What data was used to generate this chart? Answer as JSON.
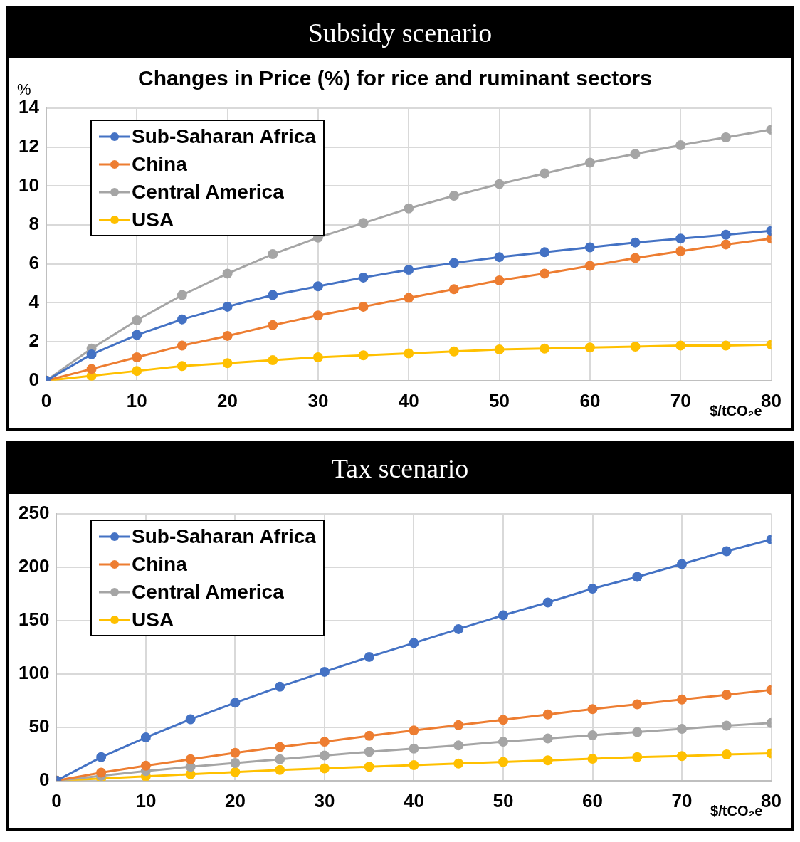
{
  "chart_data": [
    {
      "type": "line",
      "title": "Subsidy scenario",
      "subtitle": "Changes in Price (%) for rice and ruminant sectors",
      "ylabel": "%",
      "xlabel": "$/tCO₂e",
      "x": [
        0,
        5,
        10,
        15,
        20,
        25,
        30,
        35,
        40,
        45,
        50,
        55,
        60,
        65,
        70,
        75,
        80
      ],
      "xlim": [
        0,
        80
      ],
      "xticks": [
        0,
        10,
        20,
        30,
        40,
        50,
        60,
        70,
        80
      ],
      "ylim": [
        0,
        14
      ],
      "yticks": [
        0,
        2,
        4,
        6,
        8,
        10,
        12,
        14
      ],
      "grid": true,
      "legend": "top left",
      "marker": "circle",
      "line_style": "solid",
      "series": [
        {
          "name": "Sub-Saharan Africa",
          "color": "#4472c4",
          "values": [
            0,
            1.35,
            2.35,
            3.15,
            3.8,
            4.4,
            4.85,
            5.3,
            5.7,
            6.05,
            6.35,
            6.6,
            6.85,
            7.1,
            7.3,
            7.5,
            7.7
          ]
        },
        {
          "name": "China",
          "color": "#ed7d31",
          "values": [
            0,
            0.6,
            1.2,
            1.8,
            2.3,
            2.85,
            3.35,
            3.8,
            4.25,
            4.7,
            5.15,
            5.5,
            5.9,
            6.3,
            6.65,
            7.0,
            7.3
          ]
        },
        {
          "name": "Central America",
          "color": "#a5a5a5",
          "values": [
            0,
            1.65,
            3.1,
            4.4,
            5.5,
            6.5,
            7.35,
            8.1,
            8.85,
            9.5,
            10.1,
            10.65,
            11.2,
            11.65,
            12.1,
            12.5,
            12.9
          ]
        },
        {
          "name": "USA",
          "color": "#ffc000",
          "values": [
            0,
            0.25,
            0.5,
            0.75,
            0.9,
            1.05,
            1.2,
            1.3,
            1.4,
            1.5,
            1.6,
            1.65,
            1.7,
            1.75,
            1.8,
            1.8,
            1.85
          ]
        }
      ]
    },
    {
      "type": "line",
      "title": "Tax scenario",
      "xlabel": "$/tCO₂e",
      "x": [
        0,
        5,
        10,
        15,
        20,
        25,
        30,
        35,
        40,
        45,
        50,
        55,
        60,
        65,
        70,
        75,
        80
      ],
      "xlim": [
        0,
        80
      ],
      "xticks": [
        0,
        10,
        20,
        30,
        40,
        50,
        60,
        70,
        80
      ],
      "ylim": [
        0,
        250
      ],
      "yticks": [
        0,
        50,
        100,
        150,
        200,
        250
      ],
      "grid": true,
      "legend": "top left",
      "marker": "circle",
      "line_style": "solid",
      "series": [
        {
          "name": "Sub-Saharan Africa",
          "color": "#4472c4",
          "values": [
            0,
            22,
            40.5,
            57.5,
            73,
            88,
            102,
            116,
            129,
            142,
            155,
            167,
            180,
            191,
            203,
            215,
            226
          ]
        },
        {
          "name": "China",
          "color": "#ed7d31",
          "values": [
            0,
            7.5,
            14,
            20,
            26,
            31.5,
            36.5,
            42,
            47,
            52,
            57,
            62,
            67,
            71.5,
            76,
            80.5,
            85
          ]
        },
        {
          "name": "Central America",
          "color": "#a5a5a5",
          "values": [
            0,
            4.5,
            9,
            13,
            16.5,
            20,
            23.5,
            27,
            30,
            33,
            36.5,
            39.5,
            42.5,
            45.5,
            48.5,
            51.5,
            54
          ]
        },
        {
          "name": "USA",
          "color": "#ffc000",
          "values": [
            0,
            2,
            4,
            6,
            8,
            10,
            11.5,
            13,
            14.5,
            16,
            17.5,
            19,
            20.5,
            22,
            23,
            24.5,
            25.5
          ]
        }
      ]
    }
  ]
}
